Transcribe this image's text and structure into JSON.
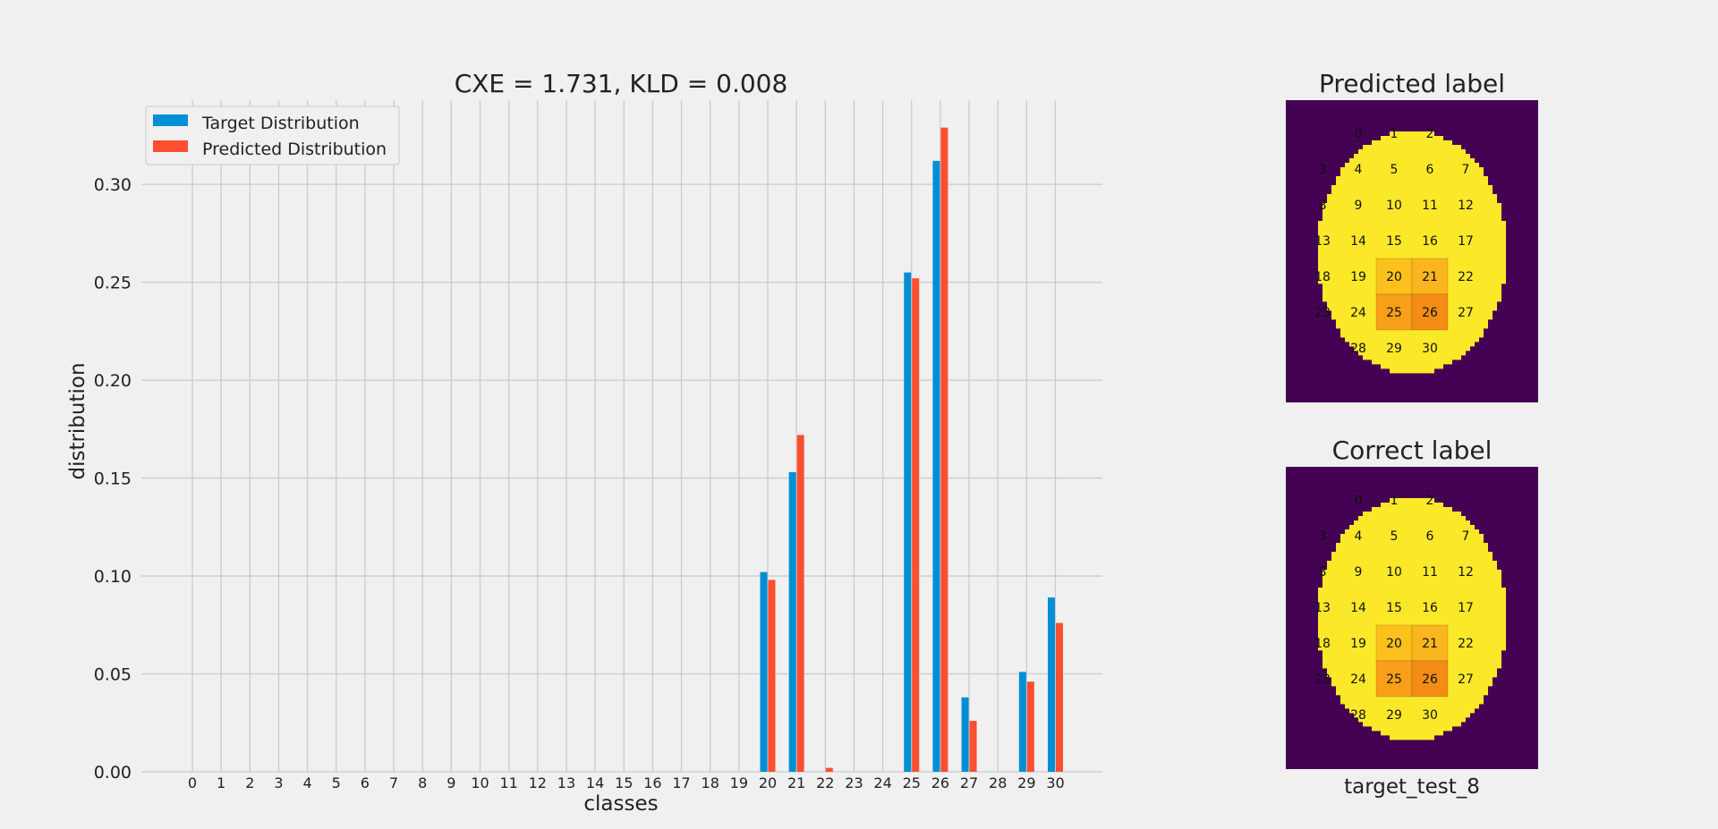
{
  "chart_data": [
    {
      "type": "bar",
      "title": "CXE = 1.731, KLD = 0.008",
      "xlabel": "classes",
      "ylabel": "distribution",
      "categories": [
        "0",
        "1",
        "2",
        "3",
        "4",
        "5",
        "6",
        "7",
        "8",
        "9",
        "10",
        "11",
        "12",
        "13",
        "14",
        "15",
        "16",
        "17",
        "18",
        "19",
        "20",
        "21",
        "22",
        "23",
        "24",
        "25",
        "26",
        "27",
        "28",
        "29",
        "30"
      ],
      "yticks": [
        "0.00",
        "0.05",
        "0.10",
        "0.15",
        "0.20",
        "0.25",
        "0.30"
      ],
      "ylim": [
        0,
        0.343
      ],
      "grid": true,
      "legend_position": "top-left",
      "series": [
        {
          "name": "Target Distribution",
          "color": "#008fd5",
          "values": [
            0,
            0,
            0,
            0,
            0,
            0,
            0,
            0,
            0,
            0,
            0,
            0,
            0,
            0,
            0,
            0,
            0,
            0,
            0,
            0,
            0.102,
            0.153,
            0,
            0,
            0,
            0.255,
            0.312,
            0.038,
            0,
            0.051,
            0.089
          ]
        },
        {
          "name": "Predicted Distribution",
          "color": "#fc4f30",
          "values": [
            0,
            0,
            0,
            0,
            0,
            0,
            0,
            0,
            0,
            0,
            0,
            0,
            0,
            0,
            0,
            0,
            0,
            0,
            0,
            0,
            0.098,
            0.172,
            0.002,
            0,
            0,
            0.252,
            0.329,
            0.026,
            0,
            0.046,
            0.076
          ]
        }
      ]
    },
    {
      "type": "heatmap",
      "title": "Predicted label",
      "cell_labels": [
        "0",
        "1",
        "2",
        "3",
        "4",
        "5",
        "6",
        "7",
        "8",
        "9",
        "10",
        "11",
        "12",
        "13",
        "14",
        "15",
        "16",
        "17",
        "18",
        "19",
        "20",
        "21",
        "22",
        "23",
        "24",
        "25",
        "26",
        "27",
        "28",
        "29",
        "30"
      ],
      "highlight": {
        "20": "#fcc11c",
        "21": "#fbb51e",
        "25": "#f99f19",
        "26": "#f48c16"
      },
      "fill_color": "#fbe829",
      "background_color": "#440154"
    },
    {
      "type": "heatmap",
      "title": "Correct label",
      "xlabel": "target_test_8",
      "cell_labels": [
        "0",
        "1",
        "2",
        "3",
        "4",
        "5",
        "6",
        "7",
        "8",
        "9",
        "10",
        "11",
        "12",
        "13",
        "14",
        "15",
        "16",
        "17",
        "18",
        "19",
        "20",
        "21",
        "22",
        "23",
        "24",
        "25",
        "26",
        "27",
        "28",
        "29",
        "30"
      ],
      "highlight": {
        "20": "#fcc11c",
        "21": "#fbb51e",
        "25": "#f99f19",
        "26": "#f48c16"
      },
      "fill_color": "#fbe829",
      "background_color": "#440154"
    }
  ]
}
